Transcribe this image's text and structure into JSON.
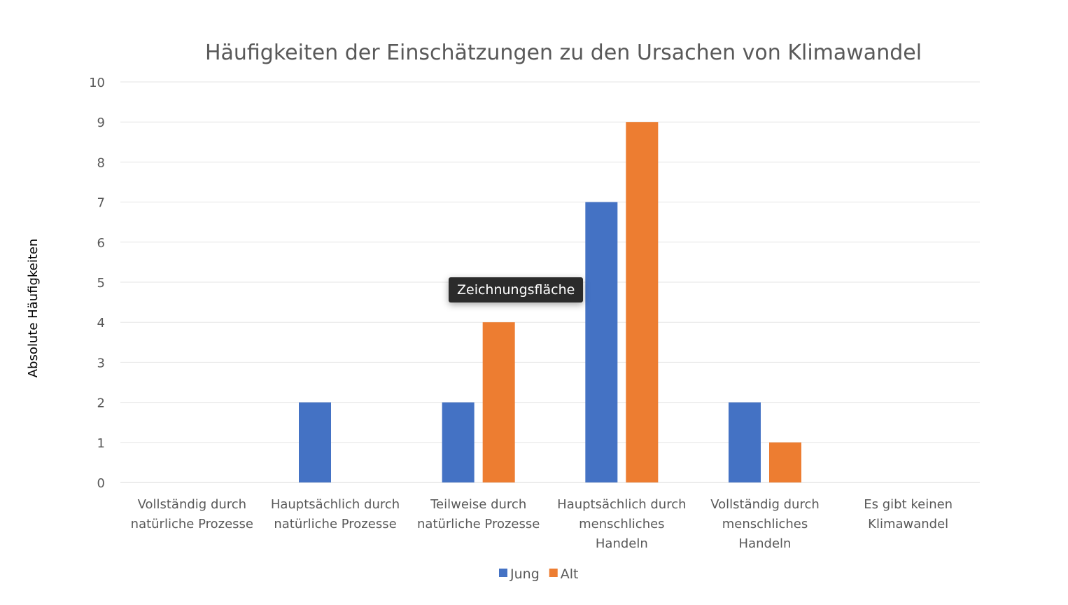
{
  "chart_data": {
    "type": "bar",
    "title": "Häufigkeiten der Einschätzungen zu den Ursachen von Klimawandel",
    "ylabel": "Absolute Häufigkeiten",
    "xlabel": "",
    "ylim": [
      0,
      10
    ],
    "yticks": [
      0,
      1,
      2,
      3,
      4,
      5,
      6,
      7,
      8,
      9,
      10
    ],
    "grid": true,
    "legend_position": "bottom",
    "categories": [
      [
        "Vollständig durch",
        "natürliche Prozesse"
      ],
      [
        "Hauptsächlich durch",
        "natürliche Prozesse"
      ],
      [
        "Teilweise durch",
        "natürliche Prozesse"
      ],
      [
        "Hauptsächlich durch",
        "menschliches",
        "Handeln"
      ],
      [
        "Vollständig durch",
        "menschliches",
        "Handeln"
      ],
      [
        "Es gibt keinen",
        "Klimawandel"
      ]
    ],
    "series": [
      {
        "name": "Jung",
        "color": "#4472C4",
        "values": [
          0,
          2,
          2,
          7,
          2,
          0
        ]
      },
      {
        "name": "Alt",
        "color": "#ED7D31",
        "values": [
          0,
          0,
          4,
          9,
          1,
          0
        ]
      }
    ]
  },
  "tooltip": {
    "text": "Zeichnungsfläche"
  }
}
